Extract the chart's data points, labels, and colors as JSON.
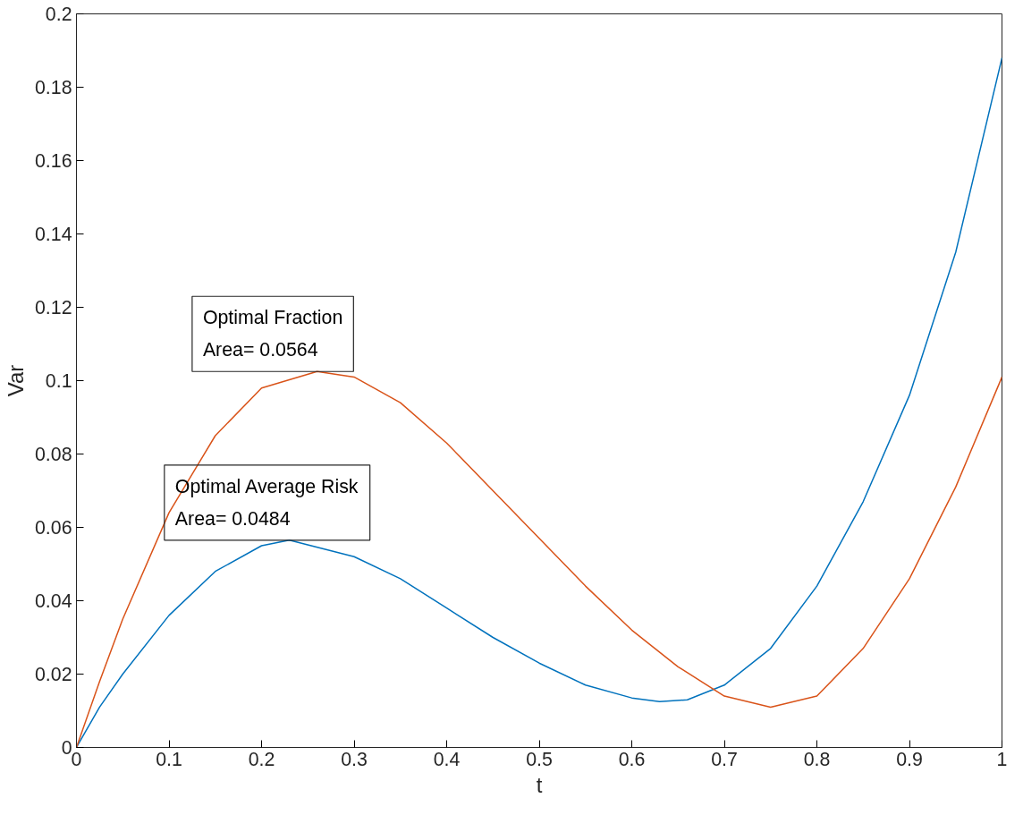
{
  "chart_data": {
    "type": "line",
    "xlabel": "t",
    "ylabel": "Var",
    "xlim": [
      0,
      1
    ],
    "xticks": [
      0,
      0.1,
      0.2,
      0.3,
      0.4,
      0.5,
      0.6,
      0.7,
      0.8,
      0.9,
      1
    ],
    "ylim": [
      0,
      0.2
    ],
    "yticks": [
      0,
      0.02,
      0.04,
      0.06,
      0.08,
      0.1,
      0.12,
      0.14,
      0.16,
      0.18,
      0.2
    ],
    "grid": false,
    "annotations": [
      "Optimal Fraction\nArea= 0.0564",
      "Optimal Average Risk\nArea= 0.0484"
    ],
    "series": [
      {
        "color": "#0072bd",
        "x": [
          0,
          0.025,
          0.05,
          0.1,
          0.15,
          0.2,
          0.23,
          0.3,
          0.35,
          0.4,
          0.45,
          0.5,
          0.55,
          0.6,
          0.63,
          0.66,
          0.7,
          0.75,
          0.8,
          0.85,
          0.9,
          0.95,
          1.0
        ],
        "values": [
          0,
          0.011,
          0.02,
          0.036,
          0.048,
          0.055,
          0.0565,
          0.052,
          0.046,
          0.038,
          0.03,
          0.023,
          0.017,
          0.0135,
          0.0125,
          0.013,
          0.017,
          0.027,
          0.044,
          0.067,
          0.096,
          0.135,
          0.188
        ]
      },
      {
        "color": "#d95319",
        "x": [
          0,
          0.025,
          0.05,
          0.1,
          0.15,
          0.2,
          0.26,
          0.3,
          0.35,
          0.4,
          0.45,
          0.5,
          0.55,
          0.6,
          0.65,
          0.7,
          0.75,
          0.8,
          0.85,
          0.9,
          0.95,
          1.0
        ],
        "values": [
          0,
          0.018,
          0.035,
          0.064,
          0.085,
          0.098,
          0.1025,
          0.101,
          0.094,
          0.083,
          0.07,
          0.057,
          0.044,
          0.032,
          0.022,
          0.014,
          0.011,
          0.014,
          0.027,
          0.046,
          0.071,
          0.101
        ]
      }
    ]
  }
}
